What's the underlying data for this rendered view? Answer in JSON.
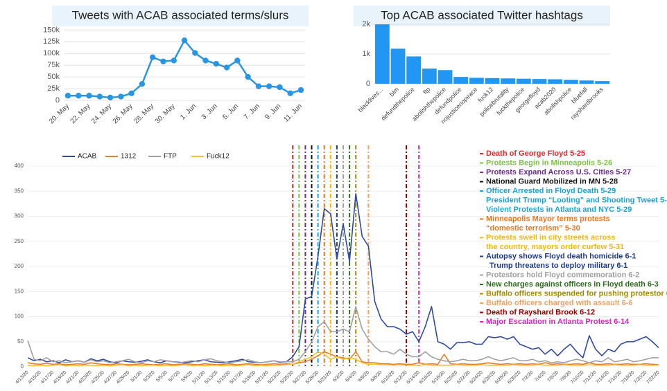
{
  "chart_data": [
    {
      "type": "line",
      "title": "Tweets with ACAB associated terms/slurs",
      "categories": [
        "20. May",
        null,
        "22. May",
        null,
        "24. May",
        null,
        "26. May",
        null,
        "28. May",
        null,
        "30. May",
        null,
        "1. Jun",
        null,
        "3. Jun",
        null,
        "5. Jun",
        null,
        "7. Jun",
        null,
        "9. Jun",
        null,
        "11. Jun"
      ],
      "values": [
        10000,
        10000,
        10000,
        8000,
        6000,
        8000,
        15000,
        35000,
        92000,
        83000,
        85000,
        128000,
        101000,
        85000,
        78000,
        70000,
        85000,
        50000,
        30000,
        30000,
        28000,
        15000,
        22000
      ],
      "color": "#2a95e0",
      "ylim": [
        0,
        155000
      ],
      "yticks": [
        0,
        {
          "value": 25000,
          "label": "25k"
        },
        {
          "value": 50000,
          "label": "50k"
        },
        {
          "value": 75000,
          "label": "75k"
        },
        {
          "value": 100000,
          "label": "100k"
        },
        {
          "value": 125000,
          "label": "125k"
        },
        {
          "value": 150000,
          "label": "150k"
        }
      ],
      "grid": true
    },
    {
      "type": "bar",
      "title": "Top ACAB associated Twitter hashtags",
      "categories": [
        "blacklives...",
        "blm",
        "defundthepolice",
        "ftp",
        "abolishthepolice",
        "defundpolice",
        "nojusticenopeace",
        "fuck12",
        "policebrutality",
        "fuckthepolice",
        "georgefloyd",
        "acab2020",
        "abolishpolice",
        "bluefall",
        "rayshardbrooks"
      ],
      "values": [
        2000,
        1180,
        920,
        510,
        460,
        230,
        200,
        190,
        180,
        170,
        160,
        150,
        130,
        110,
        90
      ],
      "color": "#2196f3",
      "ylim": [
        0,
        2050
      ],
      "yticks": [
        0,
        {
          "value": 1000,
          "label": "1k"
        },
        {
          "value": 2000,
          "label": "2k"
        }
      ],
      "grid": true
    },
    {
      "type": "line",
      "categories": [
        "4/13/20",
        null,
        "4/15/20",
        null,
        "4/17/20",
        null,
        "4/19/20",
        null,
        "4/21/20",
        null,
        "4/23/20",
        null,
        "4/25/20",
        null,
        "4/27/20",
        null,
        "4/29/20",
        null,
        "5/1/20",
        null,
        "5/3/20",
        null,
        "5/5/20",
        null,
        "5/7/20",
        null,
        "5/9/20",
        null,
        "5/11/20",
        null,
        "5/13/20",
        null,
        "5/15/20",
        null,
        "5/17/20",
        null,
        "5/19/20",
        null,
        "5/21/20",
        null,
        "5/23/20",
        null,
        "5/25/20",
        null,
        "5/27/20",
        null,
        "5/29/20",
        null,
        "5/31/20",
        null,
        "6/2/20",
        null,
        "6/4/20",
        null,
        "6/6/20",
        null,
        "6/8/20",
        null,
        "6/10/20",
        null,
        "6/12/20",
        null,
        "6/14/20",
        null,
        "6/16/20",
        null,
        "6/18/20",
        null,
        "6/20/20",
        null,
        "6/22/20",
        null,
        "6/24/20",
        null,
        "6/26/20",
        null,
        "6/28/20",
        null,
        "6/30/20",
        null,
        "7/2/20",
        null,
        "7/4/20",
        null,
        "7/6/20",
        null,
        "7/8/20",
        null,
        "7/10/20",
        null,
        "7/12/20",
        null,
        "7/14/20",
        null,
        "7/16/20",
        null,
        "7/18/20",
        null,
        "7/20/20",
        null,
        "7/22/20"
      ],
      "series": [
        {
          "name": "ACAB",
          "color": "#2e4a9e",
          "values": [
            18,
            12,
            15,
            10,
            12,
            8,
            14,
            10,
            12,
            9,
            16,
            12,
            15,
            10,
            8,
            12,
            10,
            9,
            11,
            14,
            10,
            8,
            12,
            10,
            9,
            8,
            10,
            12,
            14,
            10,
            9,
            8,
            10,
            12,
            15,
            10,
            9,
            8,
            10,
            12,
            9,
            10,
            20,
            40,
            135,
            140,
            220,
            315,
            305,
            215,
            285,
            210,
            345,
            260,
            240,
            130,
            95,
            80,
            80,
            75,
            65,
            70,
            50,
            80,
            120,
            50,
            45,
            35,
            48,
            48,
            50,
            45,
            45,
            60,
            58,
            60,
            55,
            60,
            45,
            40,
            35,
            38,
            25,
            35,
            22,
            35,
            45,
            30,
            18,
            62,
            35,
            22,
            35,
            30,
            45,
            50,
            50,
            55,
            60,
            50,
            38
          ]
        },
        {
          "name": "1312",
          "color": "#e87d2a",
          "values": [
            8,
            6,
            5,
            7,
            5,
            6,
            4,
            5,
            6,
            5,
            8,
            6,
            5,
            4,
            6,
            5,
            4,
            5,
            6,
            5,
            4,
            5,
            6,
            4,
            5,
            6,
            5,
            4,
            6,
            5,
            4,
            5,
            6,
            4,
            5,
            6,
            5,
            4,
            5,
            6,
            5,
            6,
            5,
            8,
            10,
            15,
            22,
            30,
            25,
            20,
            18,
            15,
            30,
            10,
            8,
            8,
            6,
            6,
            5,
            6,
            5,
            5,
            8,
            5,
            6,
            5,
            25,
            6,
            5,
            6,
            5,
            5,
            6,
            8,
            6,
            5,
            6,
            5,
            6,
            5,
            6,
            5,
            8,
            5,
            6,
            5,
            5,
            6,
            5,
            8,
            5,
            5,
            6,
            5,
            5,
            6,
            5,
            5,
            6,
            5,
            4
          ]
        },
        {
          "name": "FTP",
          "color": "#a0a0a0",
          "values": [
            52,
            15,
            12,
            18,
            10,
            12,
            8,
            10,
            12,
            9,
            14,
            10,
            12,
            8,
            10,
            12,
            15,
            10,
            8,
            12,
            10,
            14,
            12,
            10,
            8,
            10,
            12,
            10,
            14,
            16,
            12,
            10,
            8,
            10,
            12,
            14,
            10,
            8,
            10,
            12,
            8,
            10,
            10,
            15,
            30,
            50,
            80,
            90,
            70,
            70,
            75,
            70,
            120,
            75,
            55,
            40,
            30,
            30,
            25,
            35,
            25,
            20,
            20,
            30,
            20,
            15,
            12,
            10,
            12,
            15,
            12,
            12,
            15,
            20,
            15,
            12,
            15,
            18,
            12,
            12,
            15,
            10,
            12,
            8,
            10,
            8,
            12,
            15,
            12,
            8,
            12,
            10,
            18,
            10,
            12,
            15,
            10,
            12,
            15,
            18,
            18
          ]
        },
        {
          "name": "Fuck12",
          "color": "#f2c12e",
          "values": [
            3,
            2,
            3,
            2,
            3,
            4,
            2,
            3,
            2,
            3,
            3,
            2,
            3,
            2,
            3,
            4,
            2,
            3,
            2,
            3,
            3,
            2,
            3,
            2,
            3,
            4,
            2,
            3,
            2,
            3,
            3,
            2,
            3,
            2,
            3,
            4,
            2,
            3,
            2,
            3,
            3,
            4,
            5,
            10,
            15,
            20,
            30,
            25,
            15,
            20,
            15,
            18,
            15,
            8,
            5,
            5,
            4,
            4,
            3,
            4,
            3,
            3,
            3,
            4,
            3,
            3,
            3,
            3,
            4,
            3,
            3,
            3,
            4,
            3,
            3,
            3,
            3,
            4,
            3,
            3,
            3,
            4,
            3,
            3,
            3,
            4,
            3,
            3,
            3,
            4,
            3,
            3,
            3,
            4,
            3,
            3,
            3,
            4,
            3,
            3,
            3
          ]
        }
      ],
      "ylim": [
        0,
        400
      ],
      "yticks": [
        0,
        50,
        100,
        150,
        200,
        250,
        300,
        350,
        400
      ],
      "grid": true,
      "legend": "top-left",
      "events": [
        {
          "color": "#e8262a",
          "lines": [
            "Death of George Floyd 5-25"
          ]
        },
        {
          "color": "#7dc242",
          "lines": [
            "Protests Begin in Minneapolis 5-26"
          ]
        },
        {
          "color": "#6a2c91",
          "lines": [
            "Protests Expand Across U.S. Cities 5-27"
          ]
        },
        {
          "color": "#111111",
          "lines": [
            "National Guard Mobilized in MN 5-28"
          ]
        },
        {
          "color": "#1aa3d9",
          "lines": [
            "Officer Arrested in Floyd Death 5-29",
            "President Trump “Looting” and Shooting Tweet 5-29",
            "Violent Protests in Atlanta and NYC 5-29"
          ]
        },
        {
          "color": "#e87722",
          "lines": [
            "Minneapolis Mayor terms protests",
            "“domestic terrorism” 5-30"
          ]
        },
        {
          "color": "#f5b800",
          "lines": [
            "Protests swell in city streets across",
            "the country, mayors order curfew 5-31"
          ]
        },
        {
          "color": "#1f3a8a",
          "lines": [
            "Autopsy shows Floyd death homicide 6-1",
            "Trump threatens to deploy military 6-1"
          ]
        },
        {
          "color": "#a0a0a0",
          "lines": [
            "Protestors hold Floyd commemoration 6-2"
          ]
        },
        {
          "color": "#2e6b1f",
          "lines": [
            "New charges against officers in Floyd death 6-3"
          ]
        },
        {
          "color": "#a08a00",
          "lines": [
            "Buffalo officers suspended for pushing protestor 6-4"
          ]
        },
        {
          "color": "#f0a060",
          "lines": [
            "Buffalo officers charged with assault 6-6"
          ]
        },
        {
          "color": "#a00000",
          "lines": [
            "Death of Rayshard Brook 6-12"
          ]
        },
        {
          "color": "#e020c0",
          "lines": [
            "Major Escalation in Atlanta Protest 6-14"
          ]
        }
      ]
    }
  ]
}
